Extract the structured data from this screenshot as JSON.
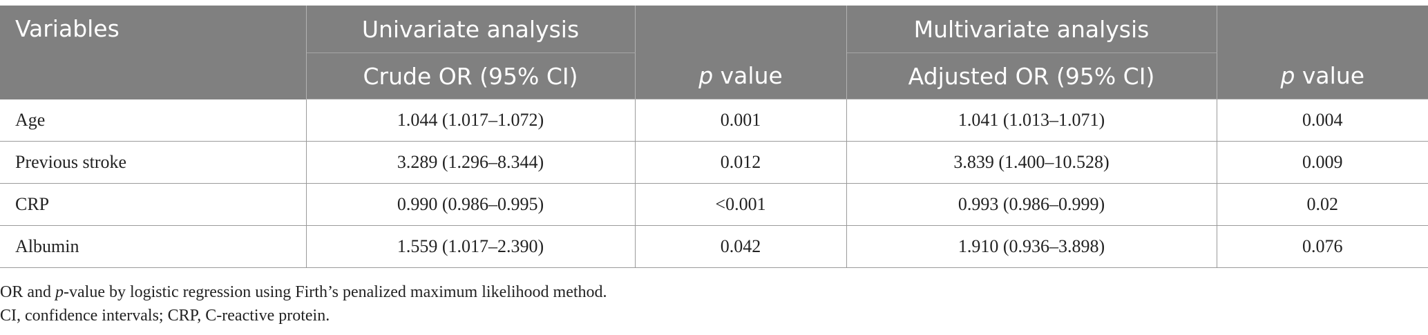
{
  "table": {
    "header": {
      "variables": "Variables",
      "univariate": "Univariate analysis",
      "multivariate": "Multivariate analysis",
      "crude_or": "Crude OR (95% CI)",
      "p_italic": "p",
      "p_rest": " value",
      "adjusted_or": "Adjusted OR (95% CI)"
    },
    "rows": [
      {
        "variable": "Age",
        "crude_or": "1.044 (1.017–1.072)",
        "p_uni": "0.001",
        "adjusted_or": "1.041 (1.013–1.071)",
        "p_multi": "0.004"
      },
      {
        "variable": "Previous stroke",
        "crude_or": "3.289 (1.296–8.344)",
        "p_uni": "0.012",
        "adjusted_or": "3.839 (1.400–10.528)",
        "p_multi": "0.009"
      },
      {
        "variable": "CRP",
        "crude_or": "0.990 (0.986–0.995)",
        "p_uni": "<0.001",
        "adjusted_or": "0.993 (0.986–0.999)",
        "p_multi": "0.02"
      },
      {
        "variable": "Albumin",
        "crude_or": "1.559 (1.017–2.390)",
        "p_uni": "0.042",
        "adjusted_or": "1.910 (0.936–3.898)",
        "p_multi": "0.076"
      }
    ]
  },
  "footnotes": {
    "note1_start": "OR and ",
    "note1_p": "p",
    "note1_end": "-value by logistic regression using Firth’s penalized maximum likelihood method.",
    "note2": "CI, confidence intervals; CRP, C-reactive protein."
  },
  "colors": {
    "header_bg": "#808080",
    "header_text": "#ffffff",
    "grid": "#9a9a9a"
  }
}
